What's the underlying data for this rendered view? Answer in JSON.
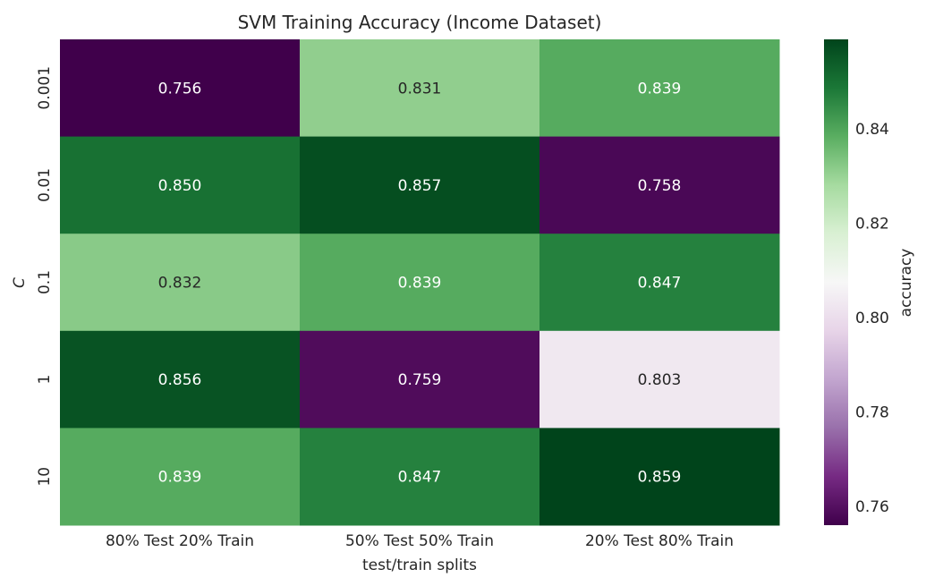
{
  "chart_data": {
    "type": "heatmap",
    "title": "SVM Training Accuracy (Income Dataset)",
    "xlabel": "test/train splits",
    "ylabel": "C",
    "x_categories": [
      "80% Test 20% Train",
      "50% Test 50% Train",
      "20% Test 80% Train"
    ],
    "y_categories": [
      "0.001",
      "0.01",
      "0.1",
      "1",
      "10"
    ],
    "values": [
      [
        0.756,
        0.831,
        0.839
      ],
      [
        0.85,
        0.857,
        0.758
      ],
      [
        0.832,
        0.839,
        0.847
      ],
      [
        0.856,
        0.759,
        0.803
      ],
      [
        0.839,
        0.847,
        0.859
      ]
    ],
    "value_labels": [
      [
        "0.756",
        "0.831",
        "0.839"
      ],
      [
        "0.850",
        "0.857",
        "0.758"
      ],
      [
        "0.832",
        "0.839",
        "0.847"
      ],
      [
        "0.856",
        "0.759",
        "0.803"
      ],
      [
        "0.839",
        "0.847",
        "0.859"
      ]
    ],
    "colorbar": {
      "label": "accuracy",
      "range": [
        0.756,
        0.859
      ],
      "ticks": [
        0.76,
        0.78,
        0.8,
        0.82,
        0.84
      ],
      "tick_labels": [
        "0.76",
        "0.78",
        "0.80",
        "0.82",
        "0.84"
      ],
      "colormap": "PRGn"
    },
    "colors": {
      "low": "#40004b",
      "mid": "#f7f7f7",
      "high": "#00441b"
    }
  }
}
